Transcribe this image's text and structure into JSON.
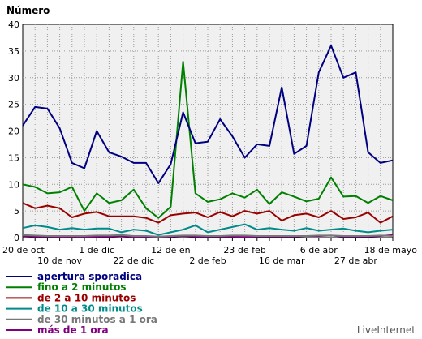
{
  "chart_data": {
    "type": "line",
    "ylabel": "Número",
    "ylim": [
      0,
      40
    ],
    "yticks": [
      0,
      5,
      10,
      15,
      20,
      25,
      30,
      35,
      40
    ],
    "grid": true,
    "legend_position": "bottom-left",
    "x_tick_labels_row1": [
      {
        "label": "20 de oct",
        "index": 0
      },
      {
        "label": "1 de dic",
        "index": 6
      },
      {
        "label": "12 de en",
        "index": 12
      },
      {
        "label": "23 de feb",
        "index": 18
      },
      {
        "label": "6 de abr",
        "index": 24
      },
      {
        "label": "18 de mayo",
        "index": 30
      }
    ],
    "x_tick_labels_row2": [
      {
        "label": "10 de nov",
        "index": 3
      },
      {
        "label": "22 de dic",
        "index": 9
      },
      {
        "label": "2 de feb",
        "index": 15
      },
      {
        "label": "16 de mar",
        "index": 21
      },
      {
        "label": "27 de abr",
        "index": 27
      }
    ],
    "series": [
      {
        "name": "apertura sporadica",
        "color": "#000080",
        "values": [
          21,
          24.5,
          24.2,
          20.5,
          14,
          13,
          20,
          16,
          15.2,
          14,
          14,
          10.2,
          13.8,
          23.5,
          17.7,
          18,
          22.2,
          19,
          15,
          17.5,
          17.2,
          28.2,
          15.7,
          17.2,
          31,
          36,
          30,
          31,
          16,
          14,
          14.5
        ]
      },
      {
        "name": "fino a 2 minutos",
        "color": "#008000",
        "values": [
          10,
          9.5,
          8.3,
          8.5,
          9.5,
          5,
          8.3,
          6.5,
          7,
          9,
          5.5,
          3.7,
          5.8,
          33,
          8.3,
          6.7,
          7.2,
          8.3,
          7.5,
          9,
          6.3,
          8.5,
          7.7,
          6.8,
          7.3,
          11.3,
          7.7,
          7.8,
          6.5,
          7.8,
          7
        ]
      },
      {
        "name": "de 2 a 10 minutos",
        "color": "#990000",
        "values": [
          6.5,
          5.5,
          6,
          5.5,
          3.8,
          4.5,
          4.8,
          4,
          4,
          4,
          3.7,
          2.8,
          4.2,
          4.5,
          4.7,
          3.8,
          4.8,
          4,
          5,
          4.5,
          5,
          3.2,
          4.2,
          4.5,
          3.8,
          5,
          3.5,
          3.8,
          4.7,
          2.8,
          4
        ]
      },
      {
        "name": "de 10 a 30 minutos",
        "color": "#008b8b",
        "values": [
          1.8,
          2.3,
          2,
          1.5,
          1.8,
          1.5,
          1.7,
          1.7,
          1,
          1.5,
          1.3,
          0.5,
          1,
          1.5,
          2.3,
          1,
          1.5,
          2,
          2.5,
          1.5,
          1.8,
          1.5,
          1.3,
          1.8,
          1.3,
          1.5,
          1.7,
          1.3,
          1,
          1.3,
          1.5
        ]
      },
      {
        "name": "de 30 minutos a 1 ora",
        "color": "#777777",
        "values": [
          0.5,
          0.4,
          0.3,
          0.3,
          0.3,
          0.3,
          0.4,
          0.4,
          0.5,
          0.3,
          0.3,
          0.2,
          0.3,
          0.4,
          0.4,
          0.3,
          0.3,
          0.4,
          0.4,
          0.3,
          0.3,
          0.3,
          0.3,
          0.3,
          0.4,
          0.4,
          0.3,
          0.3,
          0.3,
          0.4,
          0.3
        ]
      },
      {
        "name": "más de 1 ora",
        "color": "#800080",
        "values": [
          0.3,
          0.2,
          0.2,
          0.1,
          0.2,
          0.1,
          0.2,
          0.2,
          0.3,
          0.1,
          0.2,
          0.1,
          0.2,
          0.3,
          0.2,
          0.2,
          0.2,
          0.2,
          0.1,
          0.2,
          0.2,
          0.2,
          0.2,
          0.3,
          0.3,
          0.4,
          0.2,
          0.2,
          0.2,
          0.3,
          0.5
        ]
      }
    ]
  },
  "brand": "LiveInternet"
}
